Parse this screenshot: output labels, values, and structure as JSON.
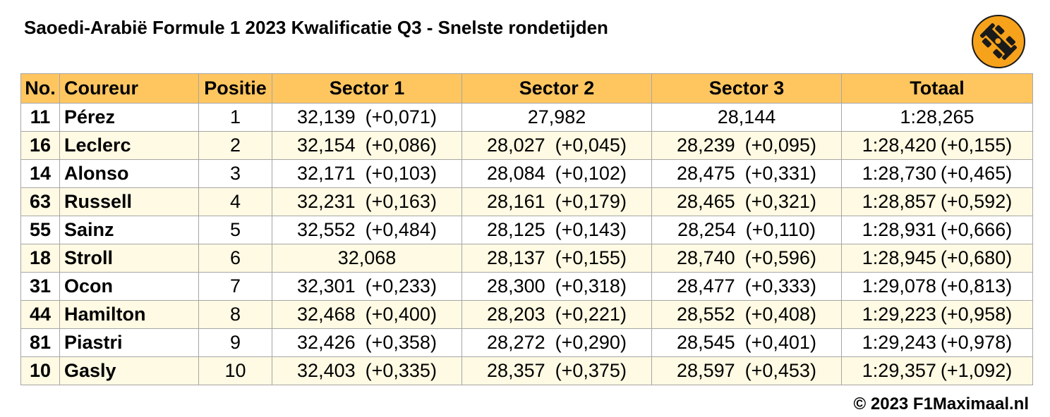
{
  "title": "Saoedi-Arabië Formule 1 2023 Kwalificatie Q3 - Snelste rondetijden",
  "headers": {
    "no": "No.",
    "driver": "Coureur",
    "position": "Positie",
    "sector1": "Sector 1",
    "sector2": "Sector 2",
    "sector3": "Sector 3",
    "total": "Totaal"
  },
  "rows": [
    {
      "no": "11",
      "driver": "Pérez",
      "position": "1",
      "s1": "32,139",
      "s1_gap": "(+0,071)",
      "s2": "27,982",
      "s2_gap": "",
      "s3": "28,144",
      "s3_gap": "",
      "total": "1:28,265",
      "total_gap": ""
    },
    {
      "no": "16",
      "driver": "Leclerc",
      "position": "2",
      "s1": "32,154",
      "s1_gap": "(+0,086)",
      "s2": "28,027",
      "s2_gap": "(+0,045)",
      "s3": "28,239",
      "s3_gap": "(+0,095)",
      "total": "1:28,420",
      "total_gap": "(+0,155)"
    },
    {
      "no": "14",
      "driver": "Alonso",
      "position": "3",
      "s1": "32,171",
      "s1_gap": "(+0,103)",
      "s2": "28,084",
      "s2_gap": "(+0,102)",
      "s3": "28,475",
      "s3_gap": "(+0,331)",
      "total": "1:28,730",
      "total_gap": "(+0,465)"
    },
    {
      "no": "63",
      "driver": "Russell",
      "position": "4",
      "s1": "32,231",
      "s1_gap": "(+0,163)",
      "s2": "28,161",
      "s2_gap": "(+0,179)",
      "s3": "28,465",
      "s3_gap": "(+0,321)",
      "total": "1:28,857",
      "total_gap": "(+0,592)"
    },
    {
      "no": "55",
      "driver": "Sainz",
      "position": "5",
      "s1": "32,552",
      "s1_gap": "(+0,484)",
      "s2": "28,125",
      "s2_gap": "(+0,143)",
      "s3": "28,254",
      "s3_gap": "(+0,110)",
      "total": "1:28,931",
      "total_gap": "(+0,666)"
    },
    {
      "no": "18",
      "driver": "Stroll",
      "position": "6",
      "s1": "32,068",
      "s1_gap": "",
      "s2": "28,137",
      "s2_gap": "(+0,155)",
      "s3": "28,740",
      "s3_gap": "(+0,596)",
      "total": "1:28,945",
      "total_gap": "(+0,680)"
    },
    {
      "no": "31",
      "driver": "Ocon",
      "position": "7",
      "s1": "32,301",
      "s1_gap": "(+0,233)",
      "s2": "28,300",
      "s2_gap": "(+0,318)",
      "s3": "28,477",
      "s3_gap": "(+0,333)",
      "total": "1:29,078",
      "total_gap": "(+0,813)"
    },
    {
      "no": "44",
      "driver": "Hamilton",
      "position": "8",
      "s1": "32,468",
      "s1_gap": "(+0,400)",
      "s2": "28,203",
      "s2_gap": "(+0,221)",
      "s3": "28,552",
      "s3_gap": "(+0,408)",
      "total": "1:29,223",
      "total_gap": "(+0,958)"
    },
    {
      "no": "81",
      "driver": "Piastri",
      "position": "9",
      "s1": "32,426",
      "s1_gap": "(+0,358)",
      "s2": "28,272",
      "s2_gap": "(+0,290)",
      "s3": "28,545",
      "s3_gap": "(+0,401)",
      "total": "1:29,243",
      "total_gap": "(+0,978)"
    },
    {
      "no": "10",
      "driver": "Gasly",
      "position": "10",
      "s1": "32,403",
      "s1_gap": "(+0,335)",
      "s2": "28,357",
      "s2_gap": "(+0,375)",
      "s3": "28,597",
      "s3_gap": "(+0,453)",
      "total": "1:29,357",
      "total_gap": "(+1,092)"
    }
  ],
  "footer": "© 2023 F1Maximaal.nl",
  "logo_icon": "race-car-icon",
  "colors": {
    "header_bg": "#ffc660",
    "row_alt_bg": "#fffae3",
    "logo_bg": "#f7a21b"
  }
}
